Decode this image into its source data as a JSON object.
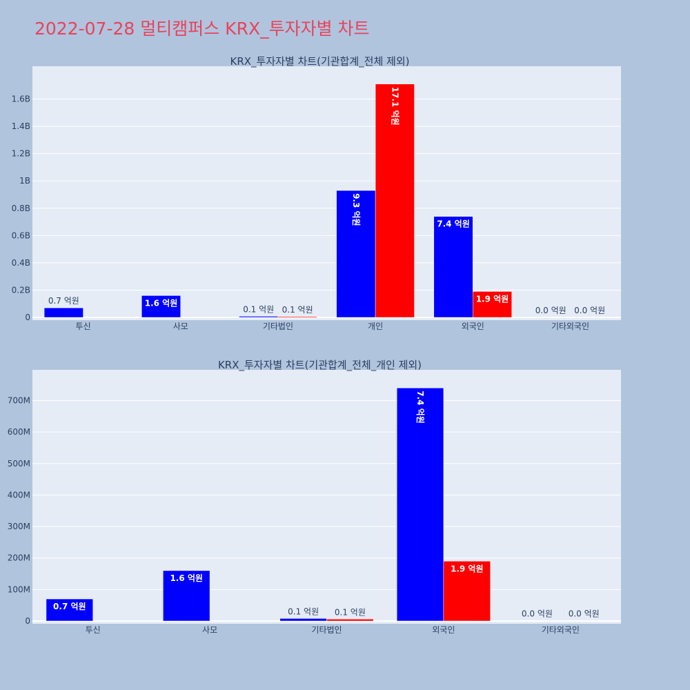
{
  "page": {
    "title": "2022-07-28 멀티캠퍼스 KRX_투자자별 차트"
  },
  "colors": {
    "buy": "#0000ff",
    "sell": "#ff0000",
    "plot_bg": "#e5ecf6",
    "page_bg": "#b0c4de"
  },
  "chart_data": [
    {
      "type": "bar",
      "title": "KRX_투자자별 차트(기관합계_전체 제외)",
      "categories": [
        "투신",
        "사모",
        "기타법인",
        "개인",
        "외국인",
        "기타외국인"
      ],
      "ylim": [
        0,
        1800000000
      ],
      "yticks": [
        0,
        200000000,
        400000000,
        600000000,
        800000000,
        1000000000,
        1200000000,
        1400000000,
        1600000000
      ],
      "ytick_labels": [
        "0",
        "0.2B",
        "0.4B",
        "0.6B",
        "0.8B",
        "1B",
        "1.2B",
        "1.4B",
        "1.6B"
      ],
      "grid": true,
      "series": [
        {
          "color": "#0000ff",
          "values": [
            70000000,
            160000000,
            8000000,
            930000000,
            740000000,
            1000000
          ],
          "labels": [
            "0.7 억원",
            "1.6 억원",
            "0.1 억원",
            "9.3 억원",
            "7.4 억원",
            "0.0 억원"
          ]
        },
        {
          "color": "#ff0000",
          "values": [
            0,
            0,
            6000000,
            1710000000,
            190000000,
            1000000
          ],
          "labels": [
            "",
            "",
            "0.1 억원",
            "17.1 억원",
            "1.9 억원",
            "0.0 억원"
          ]
        }
      ]
    },
    {
      "type": "bar",
      "title": "KRX_투자자별 차트(기관합계_전체_개인 제외)",
      "categories": [
        "투신",
        "사모",
        "기타법인",
        "외국인",
        "기타외국인"
      ],
      "ylim": [
        0,
        780000000
      ],
      "yticks": [
        0,
        100000000,
        200000000,
        300000000,
        400000000,
        500000000,
        600000000,
        700000000
      ],
      "ytick_labels": [
        "0",
        "100M",
        "200M",
        "300M",
        "400M",
        "500M",
        "600M",
        "700M"
      ],
      "grid": true,
      "series": [
        {
          "color": "#0000ff",
          "values": [
            70000000,
            160000000,
            8000000,
            740000000,
            1000000
          ],
          "labels": [
            "0.7 억원",
            "1.6 억원",
            "0.1 억원",
            "7.4 억원",
            "0.0 억원"
          ]
        },
        {
          "color": "#ff0000",
          "values": [
            0,
            0,
            6000000,
            190000000,
            1000000
          ],
          "labels": [
            "",
            "",
            "0.1 억원",
            "1.9 억원",
            "0.0 억원"
          ]
        }
      ]
    }
  ]
}
